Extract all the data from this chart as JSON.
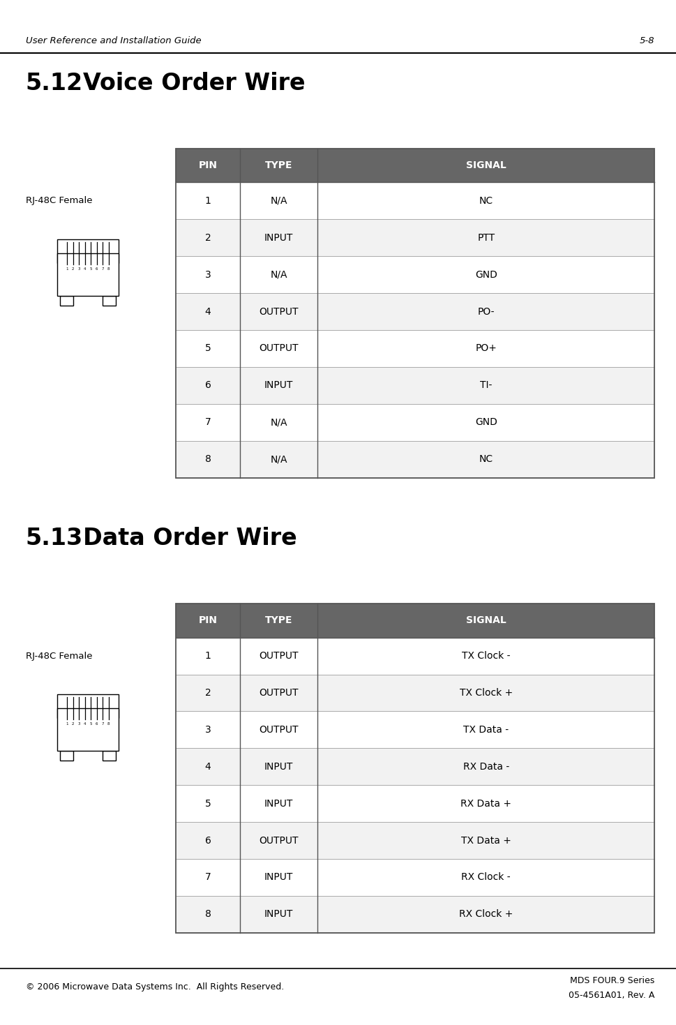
{
  "header_text": "User Reference and Installation Guide",
  "page_num": "5-8",
  "footer_left": "© 2006 Microwave Data Systems Inc.  All Rights Reserved.",
  "footer_right_line1": "MDS FOUR.9 Series",
  "footer_right_line2": "05-4561A01, Rev. A",
  "section1_title": "5.12",
  "section1_subtitle": "Voice Order Wire",
  "section2_title": "5.13",
  "section2_subtitle": "Data Order Wire",
  "connector_label": "RJ-48C Female",
  "table1_headers": [
    "PIN",
    "TYPE",
    "SIGNAL"
  ],
  "table1_rows": [
    [
      "1",
      "N/A",
      "NC"
    ],
    [
      "2",
      "INPUT",
      "PTT"
    ],
    [
      "3",
      "N/A",
      "GND"
    ],
    [
      "4",
      "OUTPUT",
      "PO-"
    ],
    [
      "5",
      "OUTPUT",
      "PO+"
    ],
    [
      "6",
      "INPUT",
      "TI-"
    ],
    [
      "7",
      "N/A",
      "GND"
    ],
    [
      "8",
      "N/A",
      "NC"
    ]
  ],
  "table2_headers": [
    "PIN",
    "TYPE",
    "SIGNAL"
  ],
  "table2_rows": [
    [
      "1",
      "OUTPUT",
      "TX Clock -"
    ],
    [
      "2",
      "OUTPUT",
      "TX Clock +"
    ],
    [
      "3",
      "OUTPUT",
      "TX Data -"
    ],
    [
      "4",
      "INPUT",
      "RX Data -"
    ],
    [
      "5",
      "INPUT",
      "RX Data +"
    ],
    [
      "6",
      "OUTPUT",
      "TX Data +"
    ],
    [
      "7",
      "INPUT",
      "RX Clock -"
    ],
    [
      "8",
      "INPUT",
      "RX Clock +"
    ]
  ],
  "header_bg": "#808080",
  "header_fg": "#ffffff",
  "row_bg_white": "#ffffff",
  "row_bg_gray": "#f2f2f2",
  "border_color": "#aaaaaa",
  "table_border_color": "#555555",
  "header_color": "#666666",
  "bg_color": "#ffffff",
  "text_color": "#000000"
}
